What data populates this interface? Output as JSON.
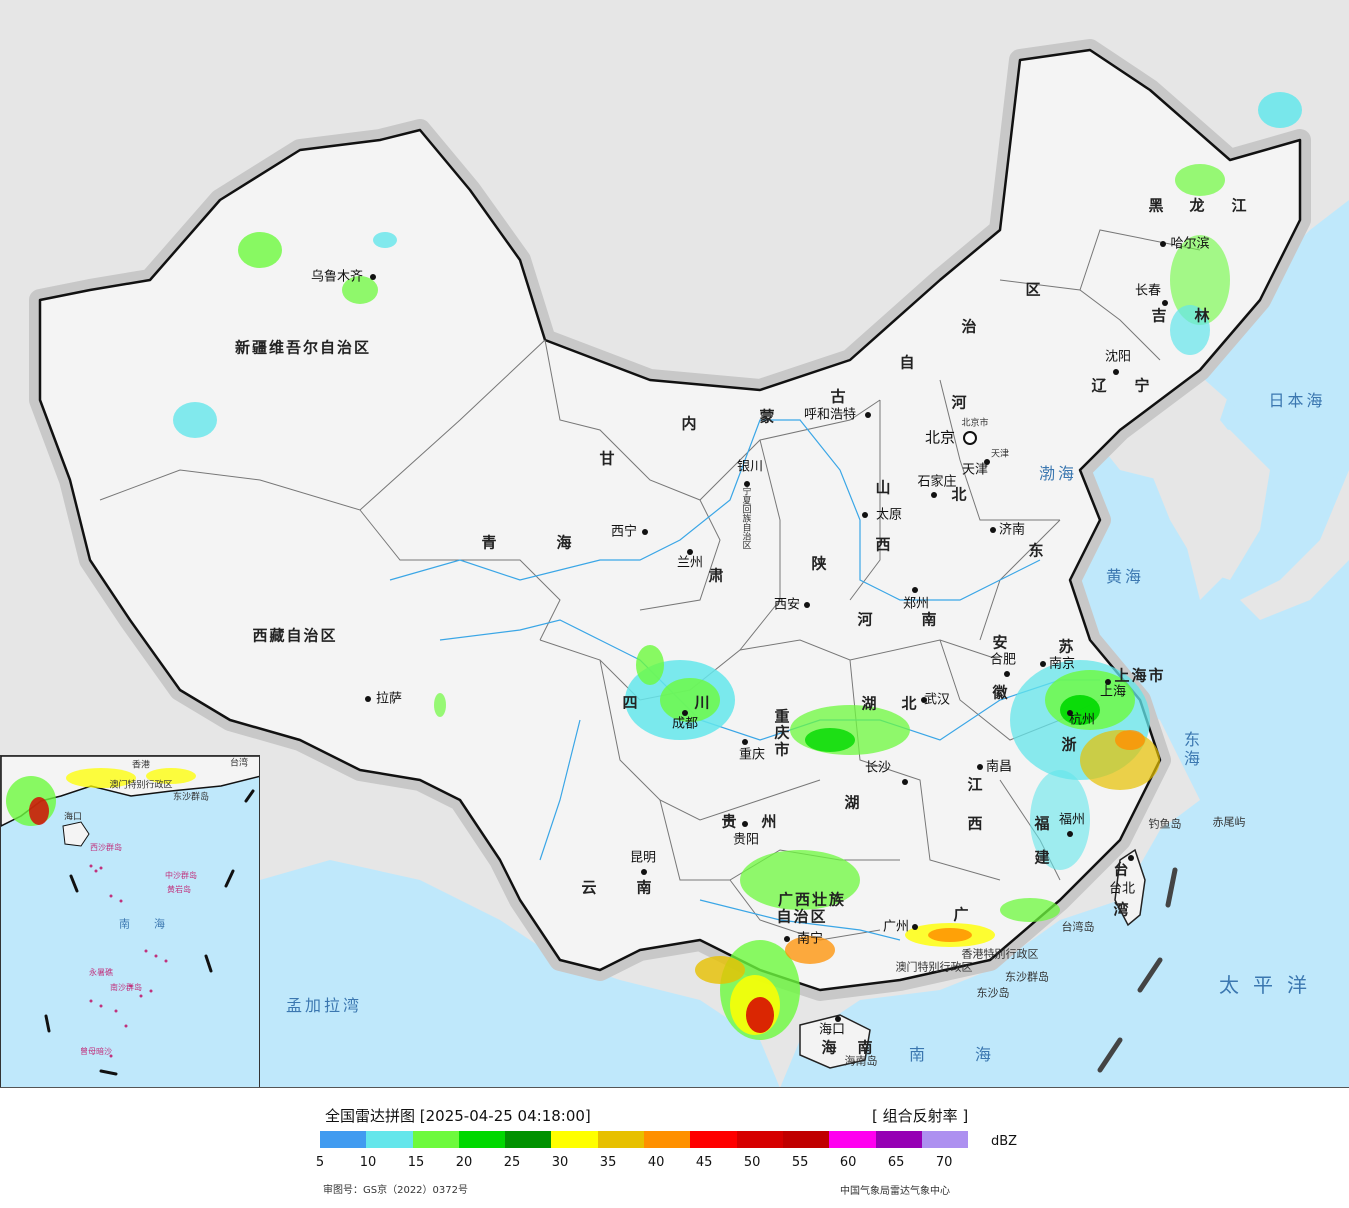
{
  "map": {
    "regions": [
      "新疆维吾尔自治区",
      "西藏自治区",
      "青",
      "海",
      "甘",
      "肃",
      "内",
      "蒙",
      "古",
      "自",
      "治",
      "区",
      "黑",
      "龙",
      "江",
      "吉",
      "林",
      "辽",
      "宁",
      "河",
      "北",
      "山",
      "西",
      "东",
      "陕",
      "四",
      "川",
      "重",
      "庆",
      "市",
      "贵",
      "州",
      "云",
      "南",
      "广西壮族",
      "自治区",
      "广",
      "湖",
      "江",
      "西",
      "安",
      "徽",
      "苏",
      "浙",
      "福",
      "建",
      "湖",
      "北",
      "河",
      "南",
      "海",
      "南",
      "上海市",
      "台",
      "湾",
      "宁夏回族自治区"
    ],
    "cities": [
      "乌鲁木齐",
      "拉萨",
      "西宁",
      "兰州",
      "银川",
      "呼和浩特",
      "北京",
      "天津",
      "石家庄",
      "太原",
      "济南",
      "郑州",
      "西安",
      "成都",
      "重庆",
      "贵阳",
      "昆明",
      "南宁",
      "广州",
      "海口",
      "长沙",
      "武汉",
      "南昌",
      "合肥",
      "南京",
      "杭州",
      "上海",
      "福州",
      "台北",
      "沈阳",
      "长春",
      "哈尔滨",
      "香港特别行政区",
      "澳门特别行政区"
    ],
    "seas": [
      "日本海",
      "渤海",
      "黄海",
      "东海",
      "太平洋",
      "南海",
      "孟加拉湾"
    ],
    "islands": [
      "钓鱼岛",
      "赤尾屿",
      "台湾岛",
      "东沙群岛",
      "东沙岛",
      "海南岛"
    ],
    "beijing_small": "北京市",
    "tianjin_small": "天津"
  },
  "inset": {
    "labels": [
      "香港",
      "澳门特别行政区",
      "东沙群岛",
      "海口",
      "西沙群岛",
      "中沙群岛",
      "黄岩岛",
      "南",
      "海",
      "永暑礁",
      "南沙群岛",
      "曾母暗沙",
      "台湾"
    ]
  },
  "legend": {
    "title": "全国雷达拼图 [2025-04-25 04:18:00]",
    "product": "[ 组合反射率 ]",
    "unit": "dBZ",
    "ticks": [
      "5",
      "10",
      "15",
      "20",
      "25",
      "30",
      "35",
      "40",
      "45",
      "50",
      "55",
      "60",
      "65",
      "70"
    ],
    "colors": [
      "#419bf0",
      "#64e6eb",
      "#6dfa3d",
      "#00d800",
      "#019101",
      "#ffff00",
      "#e7c000",
      "#ff9000",
      "#ff0000",
      "#d60000",
      "#c00000",
      "#ff00f0",
      "#9600b4",
      "#ad90f0"
    ],
    "review_number": "审图号：GS京（2022）0372号",
    "agency": "中国气象局雷达气象中心"
  }
}
